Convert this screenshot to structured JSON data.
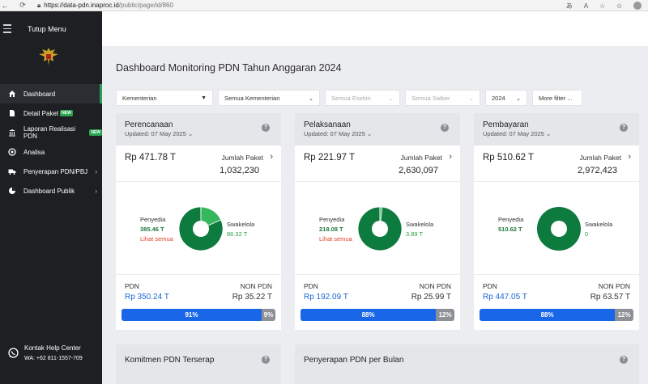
{
  "browser": {
    "url_host": "https://data-pdn.inaproc.id",
    "url_path": "/public/page/id/860"
  },
  "sidebar": {
    "toggle_label": "Tutup Menu",
    "items": [
      {
        "label": "Dashboard",
        "icon": "home-icon"
      },
      {
        "label": "Detail Paket",
        "badge": "NEW",
        "icon": "document-icon"
      },
      {
        "label": "Laporan Realisasi PDN",
        "badge": "NEW",
        "icon": "bank-icon"
      },
      {
        "label": "Analisa",
        "icon": "target-icon"
      },
      {
        "label": "Penyerapan PDN/PBJ",
        "icon": "truck-icon"
      },
      {
        "label": "Dashboard Publik",
        "icon": "pie-icon"
      }
    ],
    "help": {
      "title": "Kontak Help Center",
      "phone": "WA: +62 811-1557-709"
    }
  },
  "page": {
    "title": "Dashboard Monitoring PDN Tahun Anggaran 2024"
  },
  "filters": {
    "kementerian": "Kementerian",
    "semua_kementerian": "Semua Kementerian",
    "eselon": "Semua Eselon",
    "satker": "Semua Satker",
    "year": "2024",
    "more": "More filter ..."
  },
  "colors": {
    "green_dark": "#0d7a3e",
    "green_light": "#35b75c",
    "blue": "#1a66e8",
    "gray": "#8d9096"
  },
  "cards": [
    {
      "title": "Perencanaan",
      "updated": "Updated: 07 May 2025",
      "amount": "Rp 471.78 T",
      "jumlah_label": "Jumlah Paket",
      "jumlah_value": "1,032,230",
      "penyedia_label": "Penyedia",
      "penyedia_value": "385.46 T",
      "lihat": "Lihat semua",
      "swakelola_label": "Swakelola",
      "swakelola_value": "86.32 T",
      "swakelola_fraction": 0.183,
      "pdn_label": "PDN",
      "pdn_value": "Rp 350.24 T",
      "non_pdn_label": "NON PDN",
      "non_pdn_value": "Rp 35.22 T",
      "pdn_pct": "91%",
      "non_pdn_pct": "9%",
      "pdn_ratio": 0.91
    },
    {
      "title": "Pelaksanaan",
      "updated": "Updated: 07 May 2025",
      "amount": "Rp 221.97 T",
      "jumlah_label": "Jumlah Paket",
      "jumlah_value": "2,630,097",
      "penyedia_label": "Penyedia",
      "penyedia_value": "218.08 T",
      "lihat": "Lihat semua",
      "swakelola_label": "Swakelola",
      "swakelola_value": "3.89 T",
      "swakelola_fraction": 0.0175,
      "pdn_label": "PDN",
      "pdn_value": "Rp 192.09 T",
      "non_pdn_label": "NON PDN",
      "non_pdn_value": "Rp 25.99 T",
      "pdn_pct": "88%",
      "non_pdn_pct": "12%",
      "pdn_ratio": 0.88
    },
    {
      "title": "Pembayaran",
      "updated": "Updated: 07 May 2025",
      "amount": "Rp 510.62 T",
      "jumlah_label": "Jumlah Paket",
      "jumlah_value": "2,972,423",
      "penyedia_label": "Penyedia",
      "penyedia_value": "510.62 T",
      "lihat": "",
      "swakelola_label": "Swakelola",
      "swakelola_value": "0",
      "swakelola_fraction": 0,
      "pdn_label": "PDN",
      "pdn_value": "Rp 447.05 T",
      "non_pdn_label": "NON PDN",
      "non_pdn_value": "Rp 63.57 T",
      "pdn_pct": "88%",
      "non_pdn_pct": "12%",
      "pdn_ratio": 0.88
    }
  ],
  "bottom": {
    "komitmen": "Komitmen PDN Terserap",
    "penyerapan": "Penyerapan PDN per Bulan"
  }
}
